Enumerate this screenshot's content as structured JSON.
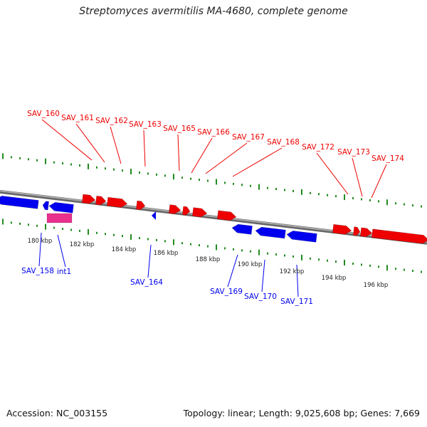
{
  "title": "Streptomyces avermitilis MA-4680, complete genome",
  "footer": {
    "accession": "Accession: NC_003155",
    "stats": "Topology: linear; Length: 9,025,608 bp; Genes: 7,669"
  },
  "colors": {
    "forward_gene": "#ee0000",
    "reverse_gene": "#0000ee",
    "special_feature": "#e8308c",
    "backbone": "#888888",
    "ticks": "#228b22",
    "scale_label": "#222222"
  },
  "scale_labels": [
    "180 kbp",
    "182 kbp",
    "184 kbp",
    "186 kbp",
    "188 kbp",
    "190 kbp",
    "192 kbp",
    "194 kbp",
    "196 kbp"
  ],
  "top_labels": [
    "SAV_160",
    "SAV_161",
    "SAV_162",
    "SAV_163",
    "SAV_165",
    "SAV_166",
    "SAV_167",
    "SAV_168",
    "SAV_172",
    "SAV_173",
    "SAV_174"
  ],
  "bottom_labels": [
    "SAV_158",
    "int1",
    "SAV_164",
    "SAV_169",
    "SAV_170",
    "SAV_171"
  ]
}
